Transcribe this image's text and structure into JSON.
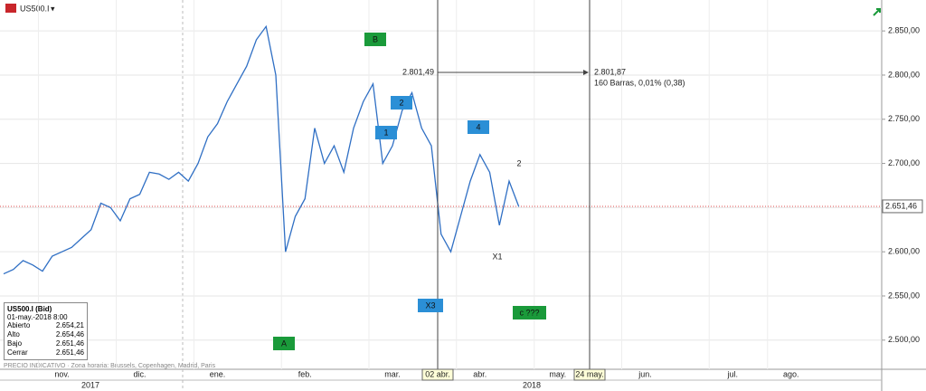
{
  "window": {
    "symbol": "US500.I",
    "footer": "PRECIO INDICATIVO · Zona horaria: Brussels, Copenhagen, Madrid, Paris"
  },
  "info_box": {
    "title": "US500.I (Bid)",
    "date": "01-may.-2018 8:00",
    "rows": [
      [
        "Abierto",
        "2.654,21"
      ],
      [
        "Alto",
        "2.654,46"
      ],
      [
        "Bajo",
        "2.651,46"
      ],
      [
        "Cerrar",
        "2.651,46"
      ]
    ]
  },
  "chart_data": {
    "type": "line",
    "categories": [
      null,
      null,
      null,
      null,
      null,
      null,
      "nov.",
      null,
      null,
      null,
      null,
      null,
      null,
      null,
      "dic.",
      null,
      null,
      null,
      null,
      null,
      null,
      null,
      "ene.",
      null,
      null,
      null,
      null,
      null,
      null,
      null,
      null,
      "feb.",
      null,
      null,
      null,
      null,
      null,
      null,
      null,
      null,
      "mar.",
      null,
      null,
      null,
      null,
      null,
      null,
      null,
      null,
      "abr.",
      null,
      null,
      null,
      null,
      null,
      null,
      null,
      "may.",
      null,
      null,
      null,
      null,
      null,
      null,
      null,
      null,
      "jun.",
      null,
      null,
      null,
      null,
      null,
      null,
      null,
      null,
      "jul.",
      null,
      null,
      null,
      null,
      null,
      "ago.",
      null,
      null,
      null,
      null,
      null,
      null,
      null,
      null,
      null
    ],
    "series": [
      {
        "color": "#2f6fc4",
        "values": [
          2575,
          2580,
          2590,
          2585,
          2578,
          2595,
          2600,
          2605,
          2615,
          2625,
          2655,
          2650,
          2635,
          2660,
          2665,
          2690,
          2688,
          2682,
          2690,
          2680,
          2700,
          2730,
          2745,
          2770,
          2790,
          2810,
          2840,
          2855,
          2800,
          2600,
          2640,
          2660,
          2740,
          2700,
          2720,
          2690,
          2740,
          2770,
          2790,
          2700,
          2720,
          2760,
          2780,
          2740,
          2720,
          2620,
          2600,
          2640,
          2680,
          2710,
          2690,
          2630,
          2680,
          2651,
          null,
          null,
          null,
          null,
          null,
          null,
          null,
          null,
          null,
          null,
          null,
          null,
          null,
          null,
          null,
          null,
          null,
          null,
          null,
          null,
          null,
          null,
          null,
          null,
          null,
          null,
          null,
          null,
          null,
          null,
          null,
          null,
          null,
          null,
          null,
          null,
          null
        ]
      }
    ],
    "ylim": [
      2467,
      2885
    ],
    "yticks": [
      {
        "value": 2500,
        "label": "2.500,00"
      },
      {
        "value": 2550,
        "label": "2.550,00"
      },
      {
        "value": 2600,
        "label": "2.600,00"
      },
      {
        "value": 2650,
        "label": "2.650,00"
      },
      {
        "value": 2700,
        "label": "2.700,00"
      },
      {
        "value": 2750,
        "label": "2.750,00"
      },
      {
        "value": 2800,
        "label": "2.800,00"
      },
      {
        "value": 2850,
        "label": "2.850,00"
      }
    ],
    "grid": true,
    "last_price": {
      "value": 2651.46,
      "label": "2.651,46"
    },
    "years": [
      "2017",
      "2018"
    ],
    "cursor_labels": [
      "02 abr.",
      "24 may."
    ],
    "annotations": [
      {
        "text": "B",
        "color": "#1a9a3a"
      },
      {
        "text": "2",
        "color": "#2b8fd6"
      },
      {
        "text": "1",
        "color": "#2b8fd6"
      },
      {
        "text": "4",
        "color": "#2b8fd6"
      },
      {
        "text": "X3",
        "color": "#2b8fd6"
      },
      {
        "text": "c ???",
        "color": "#1a9a3a"
      },
      {
        "text": "A",
        "color": "#1a9a3a"
      }
    ],
    "notes": [
      "2",
      "X1"
    ],
    "measure": {
      "start": "2.801,49",
      "end": "2.801,87",
      "detail": "160 Barras, 0,01% (0,38)"
    }
  }
}
